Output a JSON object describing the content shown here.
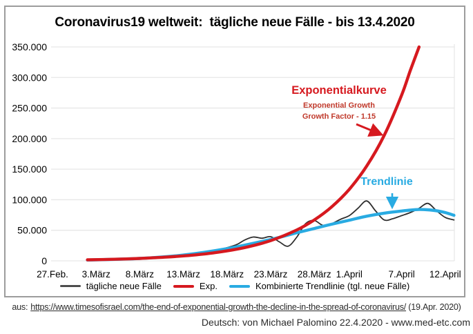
{
  "title": "Coronavirus19 weltweit:  tägliche neue Fälle - bis 13.4.2020",
  "chart_data": {
    "type": "line",
    "title": "Coronavirus19 weltweit: tägliche neue Fälle - bis 13.4.2020",
    "x_axis_note": "dates from 27.Feb.2020 to 13.4.2020, day index 0 = 27.Feb.",
    "y_axis": {
      "min": 0,
      "max": 355000,
      "tick_step": 50000,
      "grid": true
    },
    "y_ticks": [
      "0",
      "50.000",
      "100.000",
      "150.000",
      "200.000",
      "250.000",
      "300.000",
      "350.000"
    ],
    "x_ticks": [
      {
        "day": 0,
        "label": "27.Feb."
      },
      {
        "day": 5,
        "label": "3.März"
      },
      {
        "day": 10,
        "label": "8.März"
      },
      {
        "day": 15,
        "label": "13.März"
      },
      {
        "day": 20,
        "label": "18.März"
      },
      {
        "day": 25,
        "label": "23.März"
      },
      {
        "day": 30,
        "label": "28.März"
      },
      {
        "day": 34,
        "label": "1.April"
      },
      {
        "day": 40,
        "label": "7.April"
      },
      {
        "day": 45,
        "label": "12.April"
      }
    ],
    "series": [
      {
        "name": "tägliche neue Fälle",
        "color": "#2e2e2e",
        "width": 1.8,
        "points": [
          [
            4,
            1500
          ],
          [
            7,
            2300
          ],
          [
            9,
            3100
          ],
          [
            11,
            4400
          ],
          [
            13,
            6300
          ],
          [
            15,
            9500
          ],
          [
            17,
            13500
          ],
          [
            19,
            18000
          ],
          [
            21,
            26000
          ],
          [
            22,
            34000
          ],
          [
            23,
            39000
          ],
          [
            24,
            37000
          ],
          [
            25,
            39500
          ],
          [
            26,
            31000
          ],
          [
            27,
            24000
          ],
          [
            28,
            39000
          ],
          [
            29,
            61000
          ],
          [
            30,
            66000
          ],
          [
            31,
            58000
          ],
          [
            32,
            61000
          ],
          [
            33,
            68000
          ],
          [
            34,
            74000
          ],
          [
            35,
            86000
          ],
          [
            36,
            98000
          ],
          [
            37,
            82000
          ],
          [
            38,
            67000
          ],
          [
            39,
            69000
          ],
          [
            40,
            74000
          ],
          [
            41,
            79000
          ],
          [
            42,
            86000
          ],
          [
            43,
            94000
          ],
          [
            44,
            82000
          ],
          [
            45,
            71000
          ],
          [
            46,
            67000
          ]
        ]
      },
      {
        "name": "Kombinierte Trendlinie (tgl. neue Fälle)",
        "color": "#29abe2",
        "width": 4.4,
        "points": [
          [
            4,
            1300
          ],
          [
            10,
            4000
          ],
          [
            15,
            9500
          ],
          [
            20,
            20000
          ],
          [
            25,
            35000
          ],
          [
            28,
            46000
          ],
          [
            30,
            53000
          ],
          [
            32,
            60000
          ],
          [
            34,
            66500
          ],
          [
            36,
            73000
          ],
          [
            38,
            78000
          ],
          [
            40,
            81500
          ],
          [
            41,
            83000
          ],
          [
            42,
            84000
          ],
          [
            43,
            83500
          ],
          [
            44,
            82000
          ],
          [
            45,
            79000
          ],
          [
            46,
            74500
          ]
        ]
      },
      {
        "name": "Exp.",
        "color": "#d6191f",
        "width": 4.4,
        "growth_factor": 1.15,
        "points": [
          [
            4,
            1700
          ],
          [
            7,
            2600
          ],
          [
            10,
            4000
          ],
          [
            13,
            6100
          ],
          [
            16,
            9300
          ],
          [
            19,
            14200
          ],
          [
            22,
            21700
          ],
          [
            25,
            33100
          ],
          [
            28,
            50600
          ],
          [
            30,
            67000
          ],
          [
            32,
            88500
          ],
          [
            34,
            117000
          ],
          [
            36,
            155000
          ],
          [
            38,
            205000
          ],
          [
            40,
            271000
          ],
          [
            41,
            311500
          ],
          [
            42,
            350000
          ]
        ]
      }
    ],
    "annotations": {
      "exponential_label": "Exponentialkurve",
      "exponential_sub1": "Exponential Growth",
      "exponential_sub2": "Growth Factor - 1.15",
      "trend_label": "Trendlinie"
    },
    "legend": [
      {
        "label": "tägliche neue Fälle",
        "color": "#4d4d4d",
        "style": "thin"
      },
      {
        "label": "Exp.",
        "color": "#d6191f",
        "style": "thick"
      },
      {
        "label": "Kombinierte Trendlinie (tgl. neue Fälle)",
        "color": "#29abe2",
        "style": "thick"
      }
    ],
    "legend_position": "bottom-center",
    "colors": {
      "grid": "#e7e7e7",
      "frame": "#9c9c9c",
      "annotation_red": "#d6191f",
      "annotation_red_sub": "#c0392b",
      "annotation_blue": "#29abe2"
    }
  },
  "source": {
    "prefix": "aus:",
    "url": "https://www.timesofisrael.com/the-end-of-exponential-growth-the-decline-in-the-spread-of-coronavirus/",
    "date_note": "(19.Apr. 2020)",
    "credit": "Deutsch: von Michael Palomino 22.4.2020 - www.med-etc.com"
  }
}
